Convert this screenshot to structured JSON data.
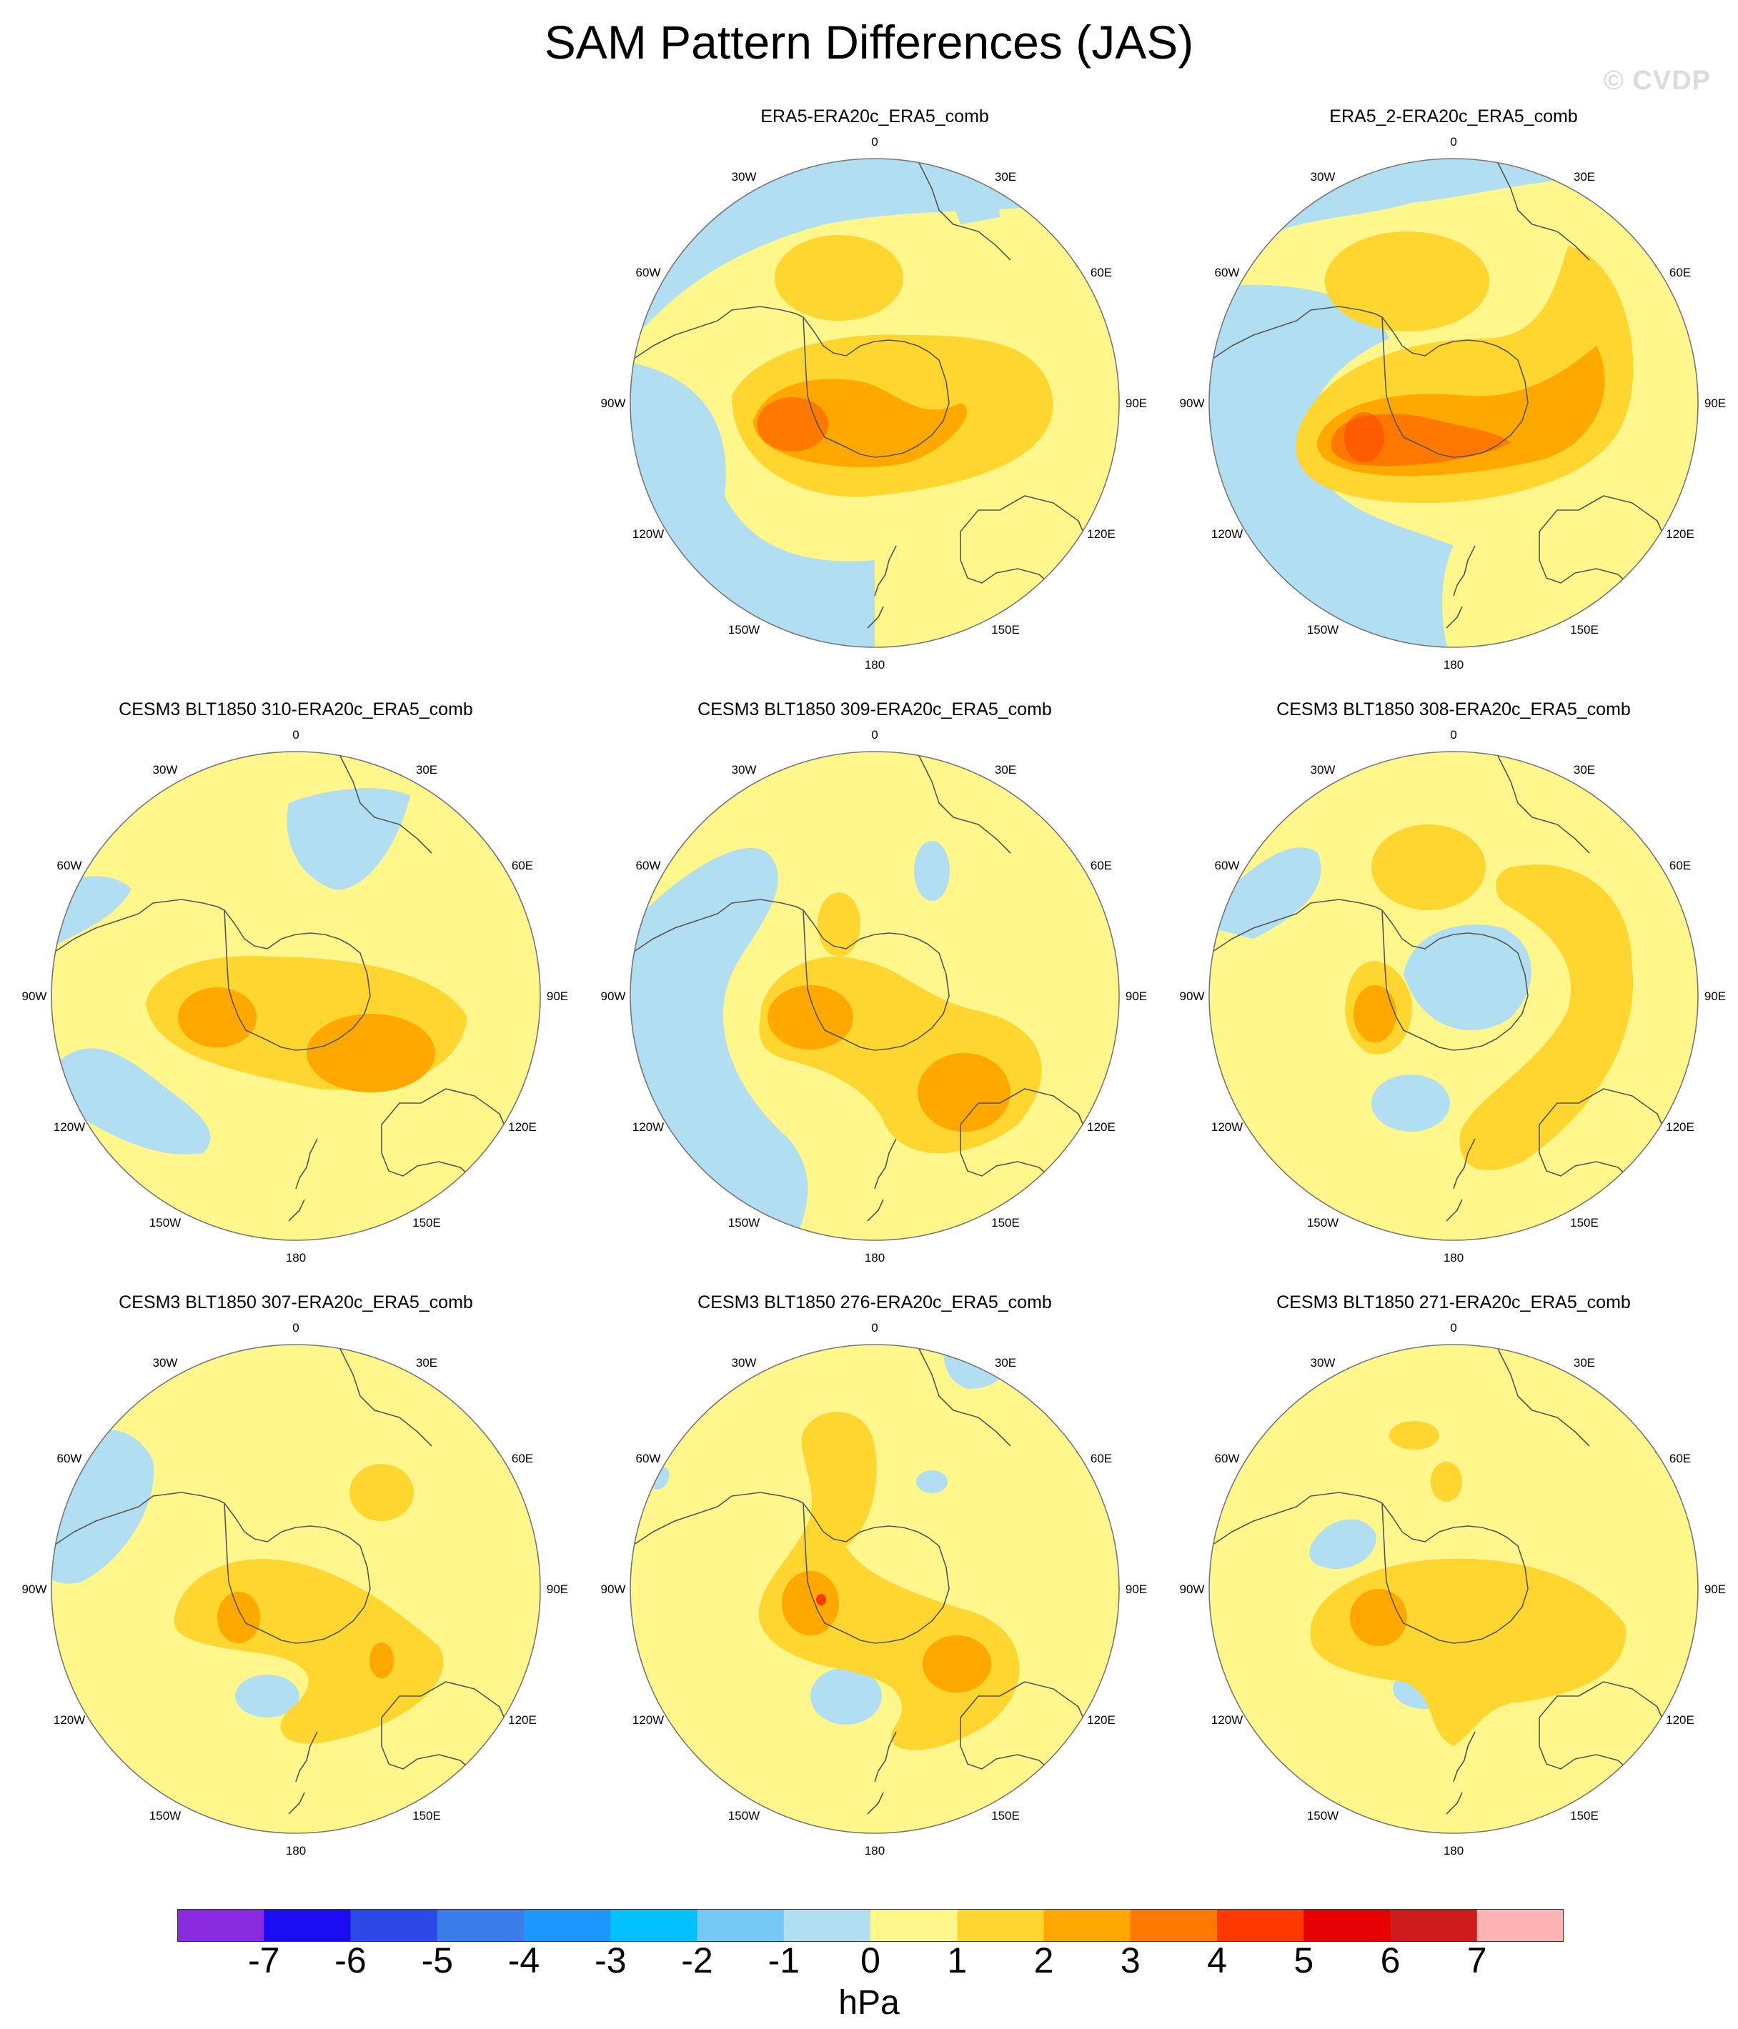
{
  "figure": {
    "title": "SAM Pattern Differences (JAS)",
    "watermark": "© CVDP",
    "units": "hPa"
  },
  "lon_labels": [
    "0",
    "30E",
    "60E",
    "90E",
    "120E",
    "150E",
    "180",
    "150W",
    "120W",
    "90W",
    "60W",
    "30W"
  ],
  "colorbar": {
    "colors": [
      "#8a2be2",
      "#1a0cf0",
      "#2c48e6",
      "#3a7ce8",
      "#1e96ff",
      "#00c0ff",
      "#74c8f4",
      "#b2def2",
      "#fff68c",
      "#ffd530",
      "#ffa800",
      "#ff7800",
      "#ff3800",
      "#e60000",
      "#ce1c1c",
      "#ffb4b4"
    ],
    "tick_labels": [
      "-7",
      "-6",
      "-5",
      "-4",
      "-3",
      "-2",
      "-1",
      "0",
      "1",
      "2",
      "3",
      "4",
      "5",
      "6",
      "7"
    ]
  },
  "panels": [
    {
      "title": "ERA5-ERA20c_ERA5_comb"
    },
    {
      "title": "ERA5_2-ERA20c_ERA5_comb"
    },
    {
      "title": "CESM3 BLT1850 310-ERA20c_ERA5_comb"
    },
    {
      "title": "CESM3 BLT1850 309-ERA20c_ERA5_comb"
    },
    {
      "title": "CESM3 BLT1850 308-ERA20c_ERA5_comb"
    },
    {
      "title": "CESM3 BLT1850 307-ERA20c_ERA5_comb"
    },
    {
      "title": "CESM3 BLT1850 276-ERA20c_ERA5_comb"
    },
    {
      "title": "CESM3 BLT1850 271-ERA20c_ERA5_comb"
    }
  ]
}
